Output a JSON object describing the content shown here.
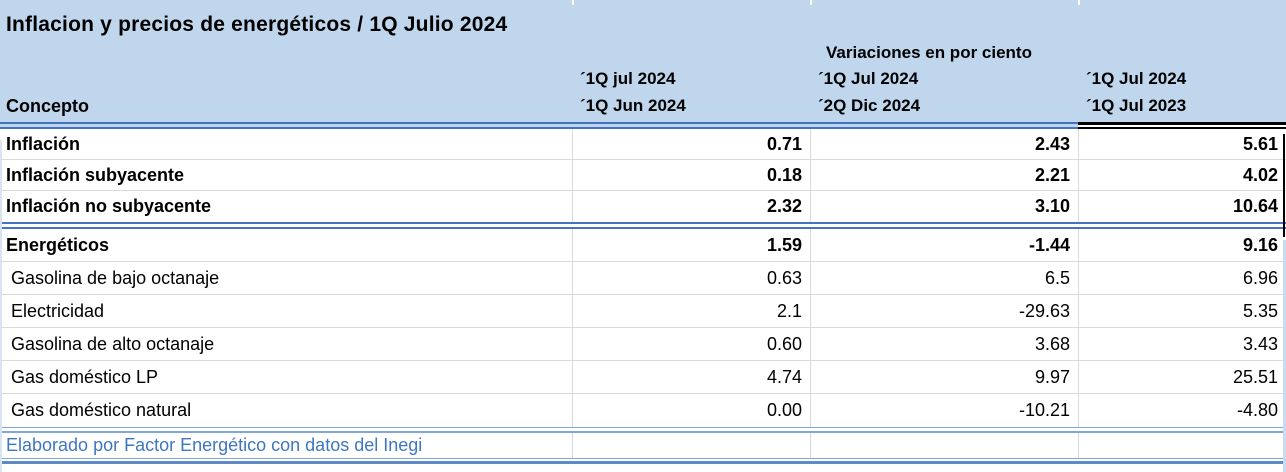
{
  "title": "Inflacion y precios de energéticos / 1Q Julio 2024",
  "group_header": "Variaciones en por ciento",
  "concept_header": "Concepto",
  "col_headers": [
    {
      "l1": "´1Q jul 2024",
      "l2": "´1Q Jun 2024"
    },
    {
      "l1": "´1Q Jul 2024",
      "l2": "´2Q Dic 2024"
    },
    {
      "l1": "´1Q Jul 2024",
      "l2": "´1Q Jul 2023"
    }
  ],
  "rows": [
    {
      "concept": "Inflación",
      "v1": "0.71",
      "v2": "2.43",
      "v3": "5.61"
    },
    {
      "concept": "Inflación subyacente",
      "v1": "0.18",
      "v2": "2.21",
      "v3": "4.02"
    },
    {
      "concept": "Inflación no subyacente",
      "v1": "2.32",
      "v2": "3.10",
      "v3": "10.64"
    },
    {
      "concept": "Energéticos",
      "v1": "1.59",
      "v2": "-1.44",
      "v3": "9.16"
    },
    {
      "concept": "Gasolina de bajo octanaje",
      "v1": "0.63",
      "v2": "6.5",
      "v3": "6.96"
    },
    {
      "concept": "Electricidad",
      "v1": "2.1",
      "v2": "-29.63",
      "v3": "5.35"
    },
    {
      "concept": "Gasolina de alto octanaje",
      "v1": "0.60",
      "v2": "3.68",
      "v3": "3.43"
    },
    {
      "concept": "Gas doméstico LP",
      "v1": "4.74",
      "v2": "9.97",
      "v3": "25.51"
    },
    {
      "concept": "Gas doméstico natural",
      "v1": "0.00",
      "v2": "-10.21",
      "v3": "-4.80"
    }
  ],
  "footer": "Elaborado por Factor Energético con datos del Inegi",
  "colors": {
    "header_bg": "#BFD6EC",
    "accent_blue": "#4472C4",
    "light_blue_line": "#7FA7D9",
    "grid_gray": "#D9D9D9",
    "footer_text": "#3F76C0",
    "black_border": "#000000"
  },
  "chart_data": {
    "type": "table",
    "title": "Inflacion y precios de energéticos / 1Q Julio 2024",
    "subtitle": "Variaciones en por ciento",
    "columns": [
      "Concepto",
      "´1Q jul 2024 / ´1Q Jun 2024",
      "´1Q Jul 2024 / ´2Q Dic 2024",
      "´1Q Jul 2024 / ´1Q Jul 2023"
    ],
    "rows": [
      [
        "Inflación",
        0.71,
        2.43,
        5.61
      ],
      [
        "Inflación subyacente",
        0.18,
        2.21,
        4.02
      ],
      [
        "Inflación no subyacente",
        2.32,
        3.1,
        10.64
      ],
      [
        "Energéticos",
        1.59,
        -1.44,
        9.16
      ],
      [
        "Gasolina de bajo octanaje",
        0.63,
        6.5,
        6.96
      ],
      [
        "Electricidad",
        2.1,
        -29.63,
        5.35
      ],
      [
        "Gasolina de alto octanaje",
        0.6,
        3.68,
        3.43
      ],
      [
        "Gas doméstico LP",
        4.74,
        9.97,
        25.51
      ],
      [
        "Gas doméstico natural",
        0.0,
        -10.21,
        -4.8
      ]
    ],
    "source_note": "Elaborado por Factor Energético con datos del Inegi"
  }
}
